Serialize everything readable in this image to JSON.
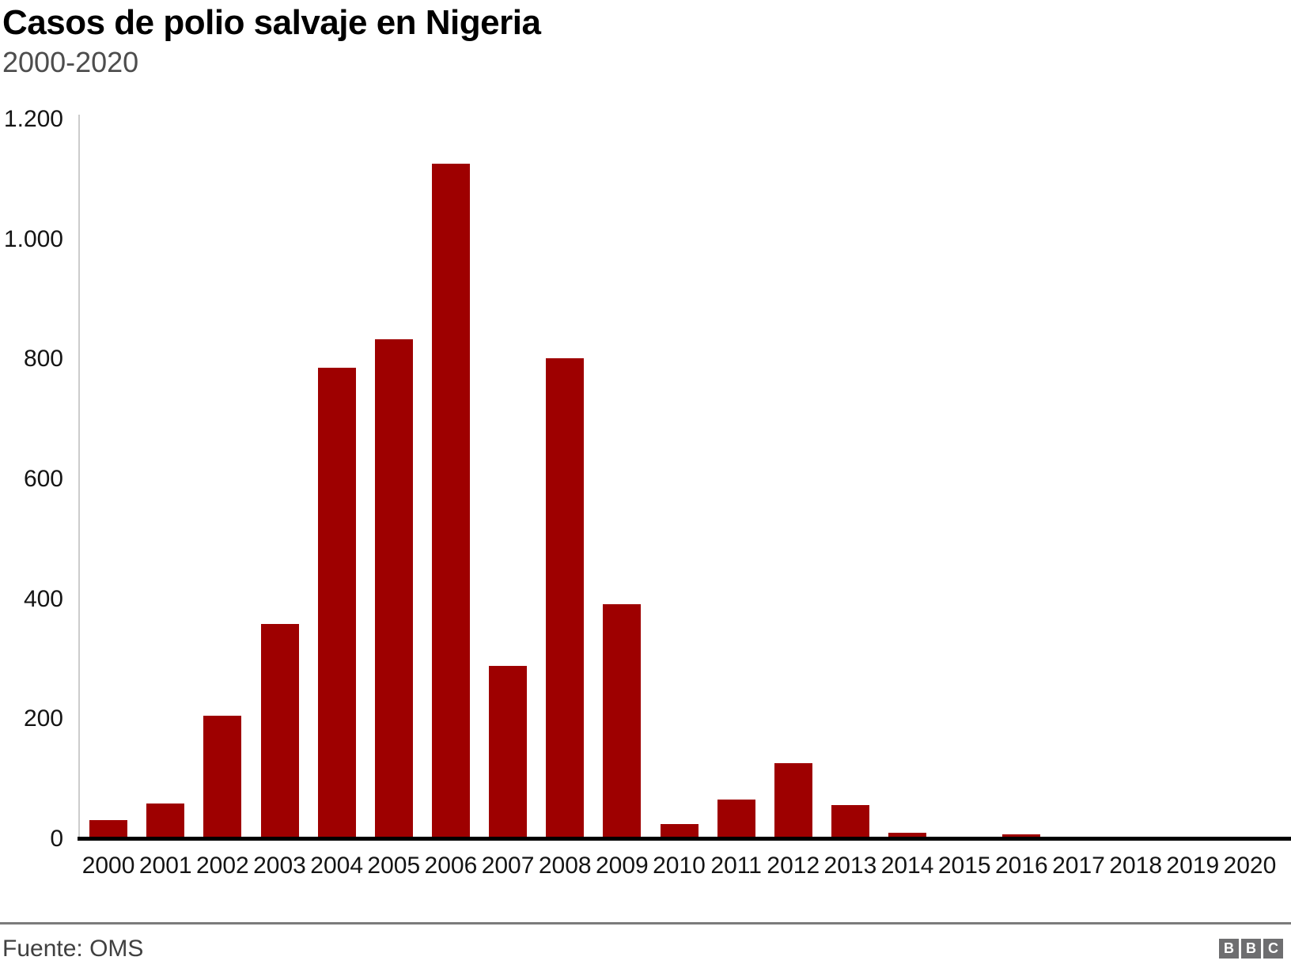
{
  "header": {
    "title": "Casos de polio salvaje en Nigeria",
    "subtitle": "2000-2020"
  },
  "chart_data": {
    "type": "bar",
    "title": "Casos de polio salvaje en Nigeria",
    "subtitle": "2000-2020",
    "categories": [
      "2000",
      "2001",
      "2002",
      "2003",
      "2004",
      "2005",
      "2006",
      "2007",
      "2008",
      "2009",
      "2010",
      "2011",
      "2012",
      "2013",
      "2014",
      "2015",
      "2016",
      "2017",
      "2018",
      "2019",
      "2020"
    ],
    "values": [
      28,
      56,
      202,
      355,
      782,
      830,
      1122,
      285,
      798,
      388,
      21,
      62,
      122,
      53,
      6,
      0,
      4,
      0,
      0,
      0,
      0
    ],
    "xlabel": "",
    "ylabel": "",
    "ylim": [
      0,
      1200
    ],
    "yticks": [
      0,
      200,
      400,
      600,
      800,
      1000,
      1200
    ],
    "ytick_labels": [
      "0",
      "200",
      "400",
      "600",
      "800",
      "1.000",
      "1.200"
    ],
    "grid": false,
    "legend_position": "none",
    "bar_color": "#9e0000"
  },
  "footer": {
    "source": "Fuente: OMS",
    "logo_letters": [
      "B",
      "B",
      "C"
    ]
  },
  "colors": {
    "bar": "#9e0000",
    "y_axis_line": "#cccccc",
    "baseline": "#000000",
    "divider": "#7b7b7b",
    "tick_text": "#141414",
    "subtitle_text": "#4d4d4d",
    "source_text": "#404040",
    "logo_background": "#6e6e70"
  }
}
